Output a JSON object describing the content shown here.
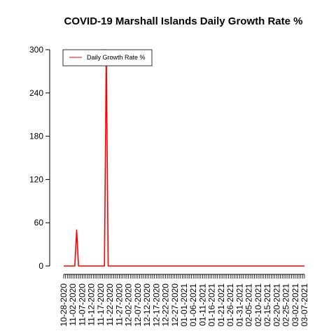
{
  "chart_data": {
    "type": "line",
    "title": "COVID-19 Marshall Islands Daily Growth Rate %",
    "xlabel": "",
    "ylabel": "",
    "ylim": [
      0,
      300
    ],
    "y_ticks": [
      0,
      60,
      120,
      180,
      240,
      300
    ],
    "grid": false,
    "legend_position": "top-left",
    "x_tick_labels": [
      "10-28-2020",
      "11-02-2020",
      "11-07-2020",
      "11-12-2020",
      "11-17-2020",
      "11-22-2020",
      "11-27-2020",
      "12-02-2020",
      "12-07-2020",
      "12-12-2020",
      "12-17-2020",
      "12-22-2020",
      "12-27-2020",
      "01-01-2021",
      "01-06-2021",
      "01-11-2021",
      "01-16-2021",
      "01-21-2021",
      "01-26-2021",
      "01-31-2021",
      "02-05-2021",
      "02-10-2021",
      "02-15-2021",
      "02-20-2021",
      "02-25-2021",
      "03-02-2021",
      "03-07-2021"
    ],
    "series": [
      {
        "name": "Daily Growth Rate %",
        "color": "#ff0000",
        "x_start": "10-28-2020",
        "x_end": "03-07-2021",
        "values": [
          0,
          0,
          0,
          0,
          0,
          0,
          0,
          50,
          0,
          0,
          0,
          0,
          0,
          0,
          0,
          0,
          0,
          0,
          0,
          0,
          0,
          0,
          0,
          300,
          0,
          0,
          0,
          0,
          0,
          0,
          0,
          0,
          0,
          0,
          0,
          0,
          0,
          0,
          0,
          0,
          0,
          0,
          0,
          0,
          0,
          0,
          0,
          0,
          0,
          0,
          0,
          0,
          0,
          0,
          0,
          0,
          0,
          0,
          0,
          0,
          0,
          0,
          0,
          0,
          0,
          0,
          0,
          0,
          0,
          0,
          0,
          0,
          0,
          0,
          0,
          0,
          0,
          0,
          0,
          0,
          0,
          0,
          0,
          0,
          0,
          0,
          0,
          0,
          0,
          0,
          0,
          0,
          0,
          0,
          0,
          0,
          0,
          0,
          0,
          0,
          0,
          0,
          0,
          0,
          0,
          0,
          0,
          0,
          0,
          0,
          0,
          0,
          0,
          0,
          0,
          0,
          0,
          0,
          0,
          0,
          0,
          0,
          0,
          0,
          0,
          0,
          0,
          0,
          0,
          0,
          0
        ]
      }
    ]
  }
}
